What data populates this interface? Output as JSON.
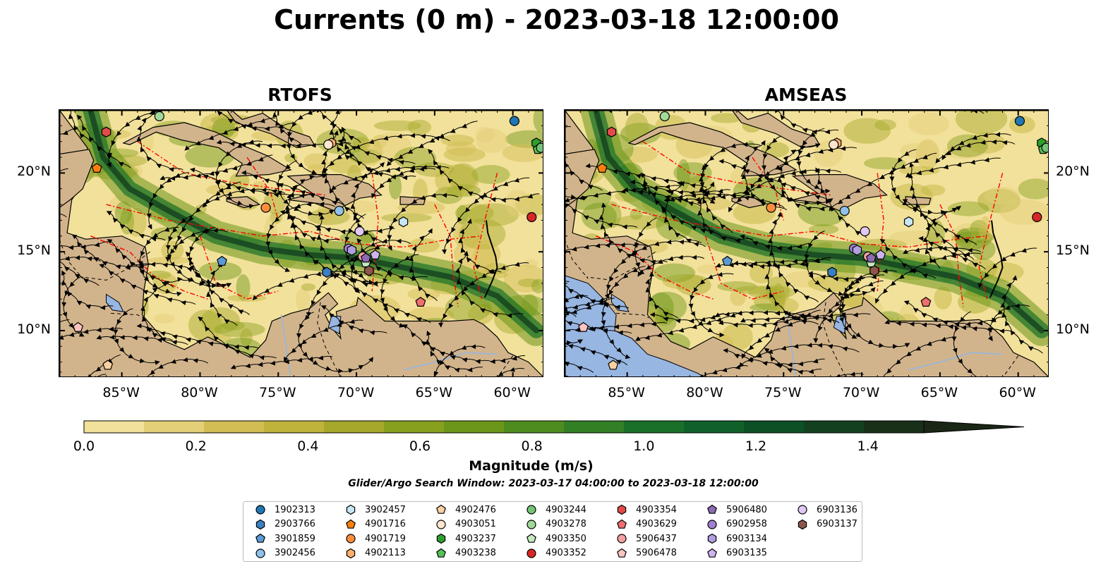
{
  "title": "Currents (0 m) - 2023-03-18 12:00:00",
  "panels": [
    {
      "title": "RTOFS"
    },
    {
      "title": "AMSEAS"
    }
  ],
  "axes": {
    "lon_labels": [
      "85°W",
      "80°W",
      "75°W",
      "70°W",
      "65°W",
      "60°W"
    ],
    "lat_labels": [
      "20°N",
      "15°N",
      "10°N"
    ],
    "extent": {
      "lon": [
        -89,
        -58
      ],
      "lat": [
        7,
        24
      ]
    }
  },
  "colorbar": {
    "label": "Magnitude (m/s)",
    "ticks": [
      "0.0",
      "0.2",
      "0.4",
      "0.6",
      "0.8",
      "1.0",
      "1.2",
      "1.4"
    ],
    "range": [
      0,
      1.5
    ],
    "extend": "max",
    "colors": [
      "#fff7bc",
      "#f2e19a",
      "#e2cf78",
      "#d2bd55",
      "#bfb33c",
      "#a5a82a",
      "#87a01e",
      "#6c9619",
      "#4f8c1f",
      "#327f25",
      "#1a7029",
      "#10602a",
      "#0d5026",
      "#13401f",
      "#182f18",
      "#1a2616"
    ]
  },
  "search_window": "Glider/Argo Search Window: 2023-03-17 04:00:00 to 2023-03-18 12:00:00",
  "colors": {
    "land": "#d2b48c",
    "ocean_pacific": "#97b6e1",
    "eez_line": "#ff0000",
    "border": "#000000"
  },
  "floats": [
    {
      "id": "1902313",
      "marker": "circle",
      "color": "#1f77b4",
      "lon": -59.9,
      "lat": 23.3
    },
    {
      "id": "2903766",
      "marker": "hexagon",
      "color": "#3a7fc1",
      "lon": -71.9,
      "lat": 13.7
    },
    {
      "id": "3901859",
      "marker": "pentagon",
      "color": "#5a9ad8",
      "lon": -78.6,
      "lat": 14.4
    },
    {
      "id": "3902456",
      "marker": "circle",
      "color": "#8fc1ea",
      "lon": -71.1,
      "lat": 17.6
    },
    {
      "id": "3902457",
      "marker": "hexagon",
      "color": "#c7e5f5",
      "lon": -67.0,
      "lat": 16.9
    },
    {
      "id": "4901716",
      "marker": "pentagon",
      "color": "#ff7f0e",
      "lon": -86.6,
      "lat": 20.3
    },
    {
      "id": "4901719",
      "marker": "circle",
      "color": "#fd8d3c",
      "lon": -75.8,
      "lat": 17.8
    },
    {
      "id": "4902113",
      "marker": "hexagon",
      "color": "#fdae6b",
      "lon": -71.6,
      "lat": 21.9
    },
    {
      "id": "4902476",
      "marker": "pentagon",
      "color": "#fdd0a2",
      "lon": -85.9,
      "lat": 7.8
    },
    {
      "id": "4903051",
      "marker": "circle",
      "color": "#fee6ce",
      "lon": -71.8,
      "lat": 21.8
    },
    {
      "id": "4903237",
      "marker": "hexagon",
      "color": "#2ca02c",
      "lon": -58.5,
      "lat": 21.9
    },
    {
      "id": "4903238",
      "marker": "pentagon",
      "color": "#56c156",
      "lon": -58.4,
      "lat": 21.5
    },
    {
      "id": "4903244",
      "marker": "circle",
      "color": "#74c476",
      "lon": -58.2,
      "lat": 21.6
    },
    {
      "id": "4903278",
      "marker": "circle",
      "color": "#a1d99b",
      "lon": -82.6,
      "lat": 23.6
    },
    {
      "id": "4903350",
      "marker": "pentagon",
      "color": "#c7e9c0",
      "lon": -69.4,
      "lat": 14.3
    },
    {
      "id": "4903352",
      "marker": "circle",
      "color": "#d62728",
      "lon": -58.8,
      "lat": 17.2
    },
    {
      "id": "4903354",
      "marker": "hexagon",
      "color": "#e34a4a",
      "lon": -86.0,
      "lat": 22.6
    },
    {
      "id": "4903629",
      "marker": "pentagon",
      "color": "#ef6f6f",
      "lon": -65.9,
      "lat": 11.8
    },
    {
      "id": "5906437",
      "marker": "circle",
      "color": "#f4a0a0",
      "lon": -69.6,
      "lat": 14.7
    },
    {
      "id": "5906478",
      "marker": "pentagon",
      "color": "#fcc5c0",
      "lon": -87.8,
      "lat": 10.2
    },
    {
      "id": "5906480",
      "marker": "pentagon",
      "color": "#8c6bb1",
      "lon": -69.4,
      "lat": 14.6
    },
    {
      "id": "6902958",
      "marker": "circle",
      "color": "#9e7fd0",
      "lon": -70.5,
      "lat": 15.2
    },
    {
      "id": "6903134",
      "marker": "hexagon",
      "color": "#b19fe0",
      "lon": -70.3,
      "lat": 15.1
    },
    {
      "id": "6903135",
      "marker": "pentagon",
      "color": "#cdb4f0",
      "lon": -68.8,
      "lat": 14.8
    },
    {
      "id": "6903136",
      "marker": "circle",
      "color": "#e2c8f6",
      "lon": -69.8,
      "lat": 16.3
    },
    {
      "id": "6903137",
      "marker": "hexagon",
      "color": "#8c564b",
      "lon": -69.2,
      "lat": 13.8
    }
  ]
}
